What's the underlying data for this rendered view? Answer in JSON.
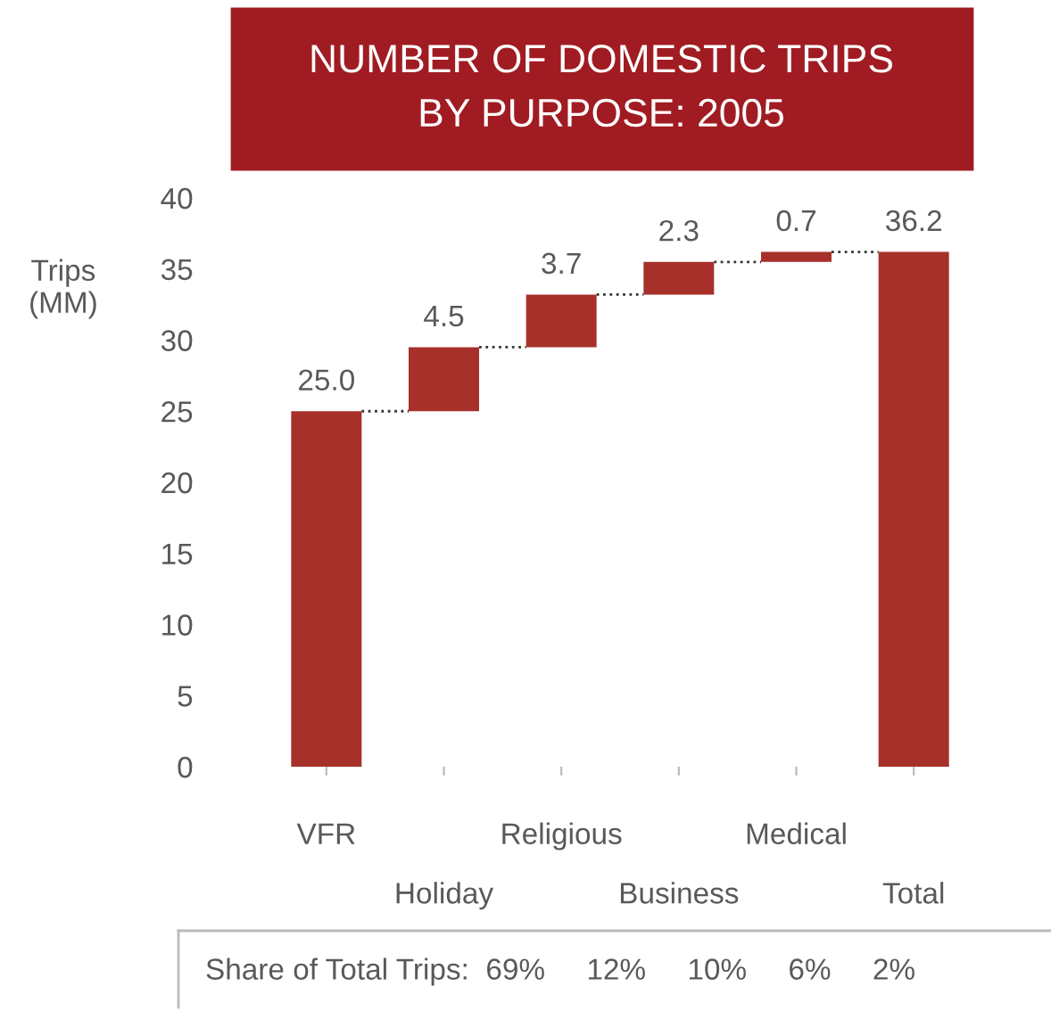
{
  "chart_data": {
    "type": "bar",
    "title": "NUMBER OF DOMESTIC TRIPS\nBY PURPOSE: 2005",
    "ylabel": "Trips\n(MM)",
    "categories": [
      "VFR",
      "Holiday",
      "Religious",
      "Business",
      "Medical",
      "Total"
    ],
    "values": [
      25.0,
      4.5,
      3.7,
      2.3,
      0.7,
      36.2
    ],
    "base": [
      0,
      25.0,
      29.5,
      33.2,
      35.5,
      0
    ],
    "color": "#a8302b",
    "ylim": [
      0,
      40
    ],
    "yticks": [
      0,
      5,
      10,
      15,
      20,
      25,
      30,
      35,
      40
    ],
    "value_labels": [
      "25.0",
      "4.5",
      "3.7",
      "2.3",
      "0.7",
      "36.2"
    ],
    "grid": false,
    "legend": false,
    "annotations": [
      "Share of Total Trips:  69%     12%     10%     6%     2%"
    ]
  }
}
